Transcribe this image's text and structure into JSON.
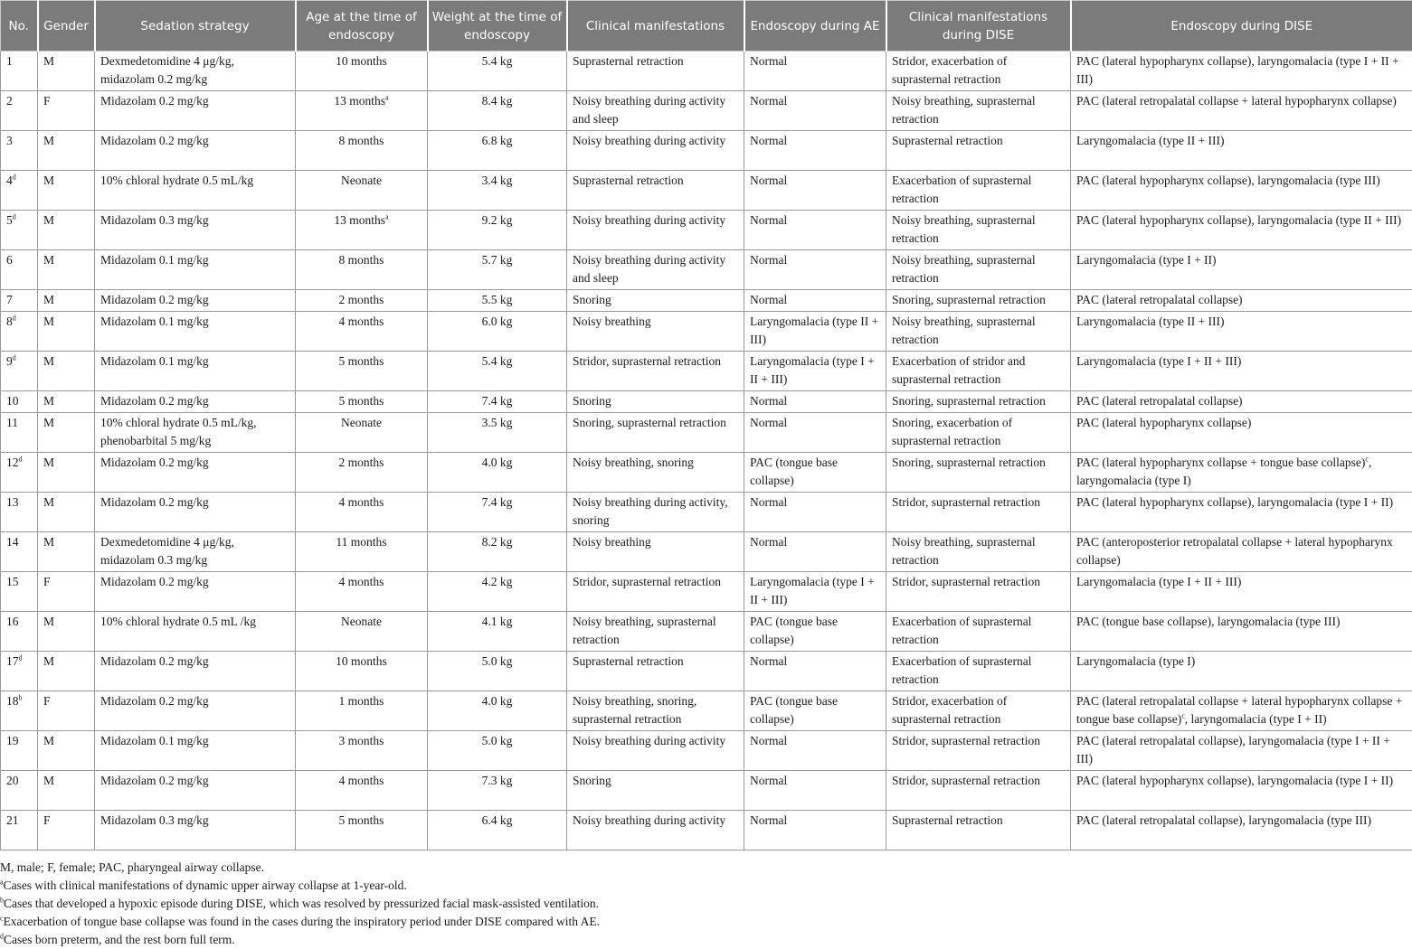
{
  "table": {
    "headers": [
      "No.",
      "Gender",
      "Sedation strategy",
      "Age at the time of endoscopy",
      "Weight at the time of endoscopy",
      "Clinical manifestations",
      "Endoscopy during AE",
      "Clinical manifestations during DISE",
      "Endoscopy during DISE"
    ],
    "rows": [
      [
        [
          "1"
        ],
        "M",
        "Dexmedetomidine 4 μg/kg, midazolam 0.2 mg/kg",
        [
          "10 months"
        ],
        "5.4 kg",
        "Suprasternal retraction",
        "Normal",
        "Stridor, exacerbation of suprasternal retraction",
        [
          "PAC (lateral hypopharynx collapse), laryngomalacia (type I + II + III)"
        ]
      ],
      [
        [
          "2"
        ],
        "F",
        "Midazolam 0.2 mg/kg",
        [
          "13 months",
          "a"
        ],
        "8.4 kg",
        "Noisy breathing during activity and sleep",
        "Normal",
        "Noisy breathing, suprasternal retraction",
        [
          "PAC (lateral retropalatal collapse + lateral hypopharynx collapse)"
        ]
      ],
      [
        [
          "3"
        ],
        "M",
        "Midazolam 0.2 mg/kg",
        [
          "8 months"
        ],
        "6.8 kg",
        "Noisy breathing during activity",
        "Normal",
        "Suprasternal retraction",
        [
          "Laryngomalacia (type II + III)"
        ]
      ],
      [
        [
          "4",
          "d"
        ],
        "M",
        "10% chloral hydrate 0.5 mL/kg",
        [
          "Neonate"
        ],
        "3.4 kg",
        "Suprasternal retraction",
        "Normal",
        "Exacerbation of suprasternal retraction",
        [
          "PAC (lateral hypopharynx collapse), laryngomalacia (type III)"
        ]
      ],
      [
        [
          "5",
          "d"
        ],
        "M",
        "Midazolam 0.3 mg/kg",
        [
          "13 months",
          "a"
        ],
        "9.2 kg",
        "Noisy breathing during activity",
        "Normal",
        "Noisy breathing, suprasternal retraction",
        [
          "PAC (lateral hypopharynx collapse), laryngomalacia (type II + III)"
        ]
      ],
      [
        [
          "6"
        ],
        "M",
        "Midazolam 0.1 mg/kg",
        [
          "8 months"
        ],
        "5.7 kg",
        "Noisy breathing during activity and sleep",
        "Normal",
        "Noisy breathing, suprasternal retraction",
        [
          "Laryngomalacia (type I + II)"
        ]
      ],
      [
        [
          "7"
        ],
        "M",
        "Midazolam 0.2 mg/kg",
        [
          "2 months"
        ],
        "5.5 kg",
        "Snoring",
        "Normal",
        "Snoring, suprasternal retraction",
        [
          "PAC (lateral retropalatal collapse)"
        ]
      ],
      [
        [
          "8",
          "d"
        ],
        "M",
        "Midazolam 0.1 mg/kg",
        [
          "4 months"
        ],
        "6.0 kg",
        "Noisy breathing",
        "Laryngomalacia (type II + III)",
        "Noisy breathing, suprasternal retraction",
        [
          "Laryngomalacia (type II + III)"
        ]
      ],
      [
        [
          "9",
          "d"
        ],
        "M",
        "Midazolam 0.1 mg/kg",
        [
          "5 months"
        ],
        "5.4 kg",
        "Stridor, suprasternal retraction",
        "Laryngomalacia (type I + II + III)",
        "Exacerbation of stridor and suprasternal retraction",
        [
          "Laryngomalacia (type I + II + III)"
        ]
      ],
      [
        [
          "10"
        ],
        "M",
        "Midazolam 0.2 mg/kg",
        [
          "5 months"
        ],
        "7.4 kg",
        "Snoring",
        "Normal",
        "Snoring, suprasternal retraction",
        [
          "PAC (lateral retropalatal collapse)"
        ]
      ],
      [
        [
          "11"
        ],
        "M",
        "10% chloral hydrate 0.5 mL/kg, phenobarbital 5 mg/kg",
        [
          "Neonate"
        ],
        "3.5 kg",
        "Snoring, suprasternal retraction",
        "Normal",
        "Snoring, exacerbation of suprasternal retraction",
        [
          "PAC (lateral hypopharynx collapse)"
        ]
      ],
      [
        [
          "12",
          "d"
        ],
        "M",
        "Midazolam 0.2 mg/kg",
        [
          "2 months"
        ],
        "4.0 kg",
        "Noisy breathing, snoring",
        "PAC (tongue base collapse)",
        "Snoring, suprasternal retraction",
        [
          "PAC (lateral hypopharynx collapse + tongue base collapse)",
          "c",
          ", laryngomalacia (type I)"
        ]
      ],
      [
        [
          "13"
        ],
        "M",
        "Midazolam 0.2 mg/kg",
        [
          "4 months"
        ],
        "7.4 kg",
        "Noisy breathing during activity, snoring",
        "Normal",
        "Stridor, suprasternal retraction",
        [
          "PAC (lateral hypopharynx collapse), laryngomalacia (type I + II)"
        ]
      ],
      [
        [
          "14"
        ],
        "M",
        "Dexmedetomidine 4 μg/kg, midazolam 0.3 mg/kg",
        [
          "11 months"
        ],
        "8.2 kg",
        "Noisy breathing",
        "Normal",
        "Noisy breathing, suprasternal retraction",
        [
          "PAC (anteroposterior retropalatal collapse + lateral hypopharynx collapse)"
        ]
      ],
      [
        [
          "15"
        ],
        "F",
        "Midazolam 0.2 mg/kg",
        [
          "4 months"
        ],
        "4.2 kg",
        "Stridor, suprasternal retraction",
        "Laryngomalacia (type I + II + III)",
        "Stridor, suprasternal retraction",
        [
          "Laryngomalacia (type I + II + III)"
        ]
      ],
      [
        [
          "16"
        ],
        "M",
        "10% chloral hydrate 0.5 mL /kg",
        [
          "Neonate"
        ],
        "4.1 kg",
        "Noisy breathing, suprasternal retraction",
        "PAC (tongue base collapse)",
        "Exacerbation of suprasternal retraction",
        [
          "PAC (tongue base collapse), laryngomalacia (type III)"
        ]
      ],
      [
        [
          "17",
          "d"
        ],
        "M",
        "Midazolam 0.2 mg/kg",
        [
          "10 months"
        ],
        "5.0 kg",
        "Suprasternal retraction",
        "Normal",
        "Exacerbation of suprasternal retraction",
        [
          "Laryngomalacia (type I)"
        ]
      ],
      [
        [
          "18",
          "b"
        ],
        "F",
        "Midazolam 0.2 mg/kg",
        [
          "1 months"
        ],
        "4.0 kg",
        "Noisy breathing, snoring, suprasternal retraction",
        "PAC (tongue base collapse)",
        "Stridor, exacerbation of suprasternal retraction",
        [
          "PAC (lateral retropalatal collapse + lateral hypopharynx collapse + tongue base collapse)",
          "c",
          ", laryngomalacia (type I + II)"
        ]
      ],
      [
        [
          "19"
        ],
        "M",
        "Midazolam 0.1 mg/kg",
        [
          "3 months"
        ],
        "5.0 kg",
        "Noisy breathing during activity",
        "Normal",
        "Stridor, suprasternal retraction",
        [
          "PAC (lateral retropalatal collapse), laryngomalacia (type I + II + III)"
        ]
      ],
      [
        [
          "20"
        ],
        "M",
        "Midazolam 0.2 mg/kg",
        [
          "4 months"
        ],
        "7.3 kg",
        "Snoring",
        "Normal",
        "Stridor, suprasternal retraction",
        [
          "PAC (lateral hypopharynx collapse), laryngomalacia (type I + II)"
        ]
      ],
      [
        [
          "21"
        ],
        "F",
        "Midazolam 0.3 mg/kg",
        [
          "5 months"
        ],
        "6.4 kg",
        "Noisy breathing during activity",
        "Normal",
        "Suprasternal retraction",
        [
          "PAC (lateral retropalatal collapse), laryngomalacia (type III)"
        ]
      ]
    ]
  },
  "footnotes": [
    {
      "mark": "",
      "text": "M, male; F, female; PAC, pharyngeal airway collapse."
    },
    {
      "mark": "a",
      "text": "Cases with clinical manifestations of dynamic upper airway collapse at 1-year-old."
    },
    {
      "mark": "b",
      "text": "Cases that developed a hypoxic episode during DISE, which was resolved by pressurized facial mask-assisted ventilation."
    },
    {
      "mark": "c",
      "text": "Exacerbation of tongue base collapse was found in the cases during the inspiratory period under DISE compared with AE."
    },
    {
      "mark": "d",
      "text": "Cases born preterm, and the rest born full term."
    }
  ]
}
